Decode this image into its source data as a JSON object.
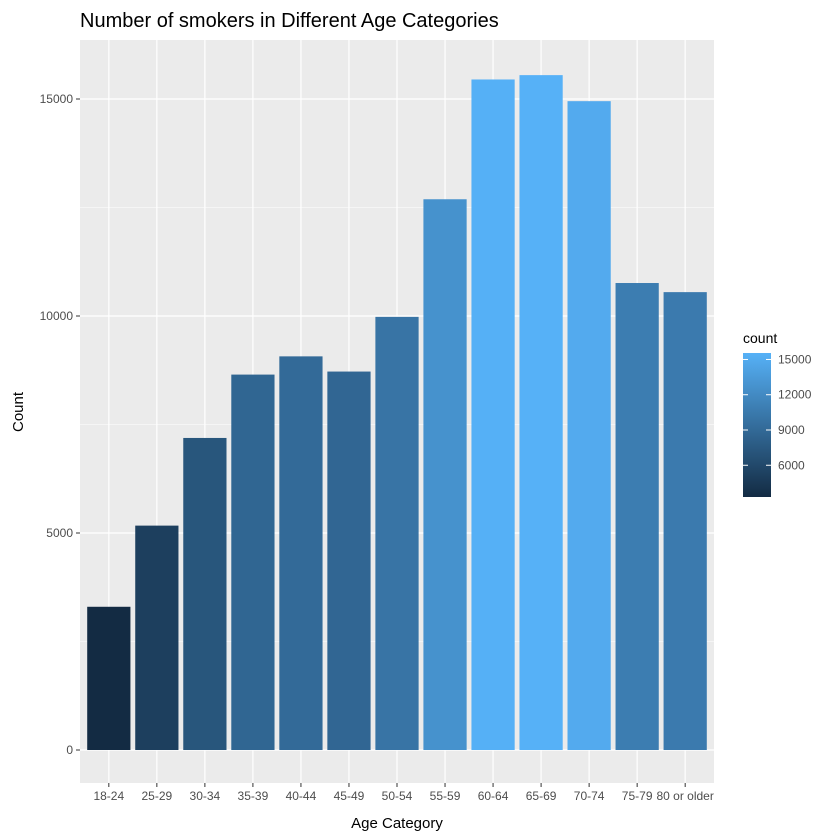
{
  "chart_data": {
    "type": "bar",
    "title": "Number of smokers in Different Age Categories",
    "xlabel": "Age Category",
    "ylabel": "Count",
    "categories": [
      "18-24",
      "25-29",
      "30-34",
      "35-39",
      "40-44",
      "45-49",
      "50-54",
      "55-59",
      "60-64",
      "65-69",
      "70-74",
      "75-79",
      "80 or older"
    ],
    "values": [
      3300,
      5170,
      7190,
      8650,
      9070,
      8720,
      9980,
      12690,
      15450,
      15550,
      14950,
      10760,
      10550
    ],
    "ylim": [
      0,
      16300
    ],
    "yticks": [
      0,
      5000,
      10000,
      15000
    ],
    "ytick_labels": [
      "0",
      "5000",
      "10000",
      "15000"
    ],
    "grid": true,
    "fill_scale": {
      "low_value": 3300,
      "high_value": 15550,
      "low_color": "#132b43",
      "high_color": "#56b1f7"
    },
    "legend": {
      "title": "count",
      "position": "right",
      "ticks": [
        6000,
        9000,
        12000,
        15000
      ],
      "tick_labels": [
        "6000",
        "9000",
        "12000",
        "15000"
      ]
    },
    "colors": {
      "panel_background": "#ebebeb",
      "grid": "#ffffff"
    }
  }
}
